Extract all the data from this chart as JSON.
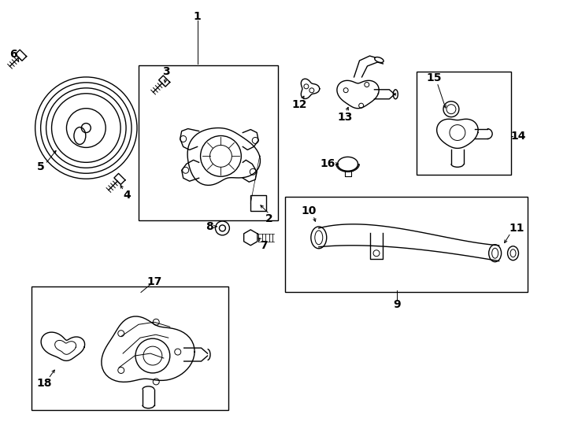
{
  "bg_color": "#ffffff",
  "line_color": "#000000",
  "fig_width": 7.34,
  "fig_height": 5.4,
  "dpi": 100,
  "boxes": {
    "pump": [
      1.75,
      2.6,
      1.78,
      1.98
    ],
    "thermostat": [
      5.3,
      3.18,
      1.2,
      1.32
    ],
    "pipe": [
      3.62,
      1.68,
      3.1,
      1.22
    ],
    "oil_pump": [
      0.38,
      0.18,
      2.52,
      1.58
    ]
  }
}
